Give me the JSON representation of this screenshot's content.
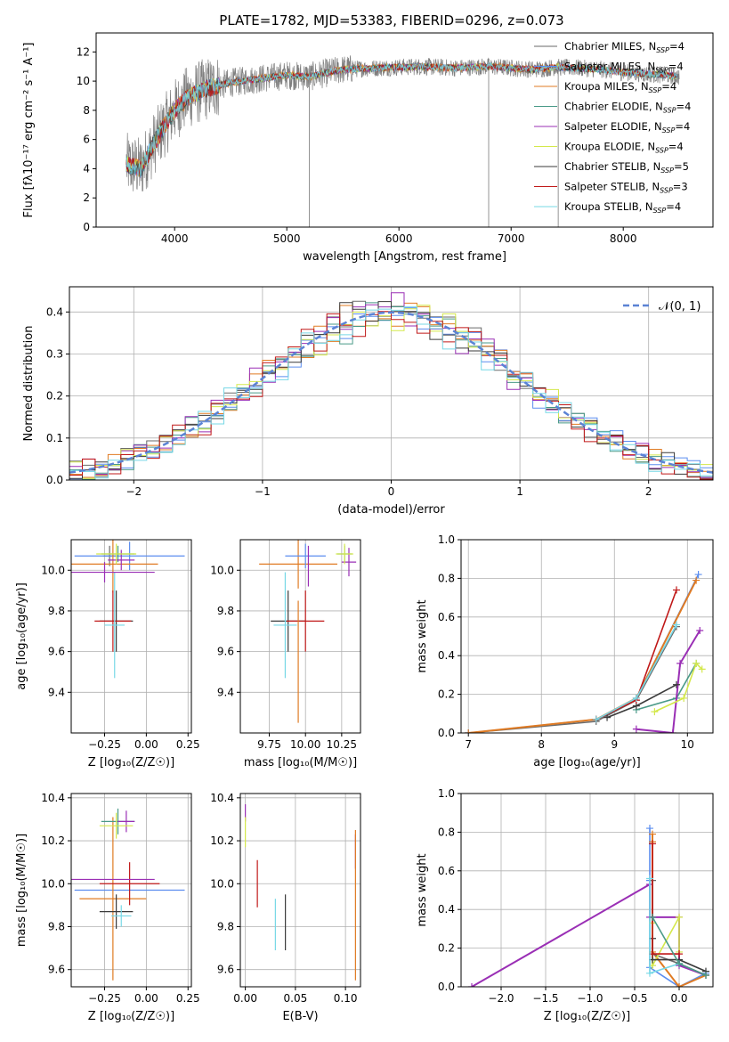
{
  "title": "PLATE=1782, MJD=53383, FIBERID=0296, z=0.073",
  "colors": {
    "Chabrier MILES": "#6a6a6a",
    "Salpeter MILES": "#5b8def",
    "Kroupa MILES": "#e07b23",
    "Chabrier ELODIE": "#4a9a88",
    "Salpeter ELODIE": "#9a2fb5",
    "Kroupa ELODIE": "#d4e84b",
    "Chabrier STELIB": "#3a3a3a",
    "Salpeter STELIB": "#c01818",
    "Kroupa STELIB": "#77d8e6"
  },
  "chart_data": [
    {
      "id": "spectrum",
      "type": "line",
      "title": "PLATE=1782, MJD=53383, FIBERID=0296, z=0.073",
      "xlabel": "wavelength [Angstrom, rest frame]",
      "ylabel": "Flux [fλ10⁻¹⁷ erg cm⁻² s⁻¹ A⁻¹]",
      "xlim": [
        3300,
        8800
      ],
      "ylim": [
        0,
        13.3
      ],
      "xticks": [
        4000,
        5000,
        6000,
        7000,
        8000
      ],
      "yticks": [
        0,
        2,
        4,
        6,
        8,
        10,
        12
      ],
      "grid": false,
      "legend_position": "right",
      "continuum": {
        "x": [
          3570,
          3700,
          3800,
          3900,
          4000,
          4100,
          4200,
          4300,
          4500,
          4800,
          5000,
          5200,
          5500,
          5800,
          6000,
          6200,
          6500,
          6800,
          7000,
          7200,
          7400,
          7600,
          7800,
          8000,
          8200,
          8400,
          8500
        ],
        "y": [
          4.3,
          4.0,
          5.5,
          6.8,
          8.0,
          8.8,
          9.2,
          9.5,
          9.9,
          10.2,
          10.4,
          10.3,
          10.8,
          10.9,
          10.95,
          11.0,
          10.9,
          11.0,
          10.9,
          10.8,
          10.95,
          10.9,
          10.8,
          10.6,
          10.5,
          10.4,
          10.3
        ]
      },
      "legend": [
        "Chabrier MILES, N_SSP=4",
        "Salpeter MILES, N_SSP=4",
        "Kroupa MILES, N_SSP=4",
        "Chabrier ELODIE, N_SSP=4",
        "Salpeter ELODIE, N_SSP=4",
        "Kroupa ELODIE, N_SSP=4",
        "Chabrier STELIB, N_SSP=5",
        "Salpeter STELIB, N_SSP=3",
        "Kroupa STELIB, N_SSP=4"
      ]
    },
    {
      "id": "residuals",
      "type": "line",
      "xlabel": "(data-model)/error",
      "ylabel": "Normed distribution",
      "xlim": [
        -2.5,
        2.5
      ],
      "ylim": [
        0,
        0.46
      ],
      "xticks": [
        -2,
        -1,
        0,
        1,
        2
      ],
      "yticks": [
        0.0,
        0.1,
        0.2,
        0.3,
        0.4
      ],
      "grid": true,
      "legend_position": "top-right",
      "gaussian_label": "𝒩(0, 1)",
      "bin_width": 0.1,
      "bin_start": -2.5
    },
    {
      "id": "age_vs_Z",
      "type": "scatter",
      "xlabel": "Z [log₁₀(Z/Z☉)]",
      "ylabel": "age  [log₁₀(age/yr)]",
      "xlim": [
        -0.45,
        0.27
      ],
      "ylim": [
        9.2,
        10.15
      ],
      "xticks": [
        -0.25,
        0.0,
        0.25
      ],
      "xticklabels": [
        "−0.25",
        "0.00",
        "0.25"
      ],
      "yticks": [
        9.4,
        9.6,
        9.8,
        10.0
      ],
      "grid": true,
      "points": [
        {
          "model": "Chabrier MILES",
          "x": -0.22,
          "xerr": 0.04,
          "y": 10.07,
          "yerr": 0.05
        },
        {
          "model": "Salpeter MILES",
          "x": -0.1,
          "xerr": 0.33,
          "y": 10.07,
          "yerr": 0.07
        },
        {
          "model": "Kroupa MILES",
          "x": -0.2,
          "xerr": 0.27,
          "y": 10.03,
          "yerr": 0.14
        },
        {
          "model": "Chabrier ELODIE",
          "x": -0.17,
          "xerr": 0.1,
          "y": 10.08,
          "yerr": 0.04
        },
        {
          "model": "Salpeter ELODIE",
          "x": -0.15,
          "xerr": 0.08,
          "y": 10.05,
          "yerr": 0.05
        },
        {
          "model": "Kroupa ELODIE",
          "x": -0.18,
          "xerr": 0.12,
          "y": 10.08,
          "yerr": 0.05
        },
        {
          "model": "Chabrier STELIB",
          "x": -0.18,
          "xerr": 0.1,
          "y": 9.75,
          "yerr": 0.15
        },
        {
          "model": "Salpeter STELIB",
          "x": -0.2,
          "xerr": 0.11,
          "y": 9.75,
          "yerr": 0.15
        },
        {
          "model": "Kroupa STELIB",
          "x": -0.19,
          "xerr": 0.06,
          "y": 9.73,
          "yerr": 0.26
        },
        {
          "model": "Salpeter ELODIE",
          "x": -0.25,
          "xerr": 0.3,
          "y": 9.99,
          "yerr": 0.05
        }
      ]
    },
    {
      "id": "age_vs_mass",
      "type": "scatter",
      "xlabel": "mass [log₁₀(M/M☉)]",
      "ylabel": "",
      "xlim": [
        9.55,
        10.38
      ],
      "ylim": [
        9.2,
        10.15
      ],
      "xticks": [
        9.75,
        10.0,
        10.25
      ],
      "xticklabels": [
        "9.75",
        "10.00",
        "10.25"
      ],
      "yticks": [
        9.4,
        9.6,
        9.8,
        10.0
      ],
      "grid": true,
      "points": [
        {
          "model": "Kroupa MILES",
          "x": 9.95,
          "xerr": 0.27,
          "y": 10.03,
          "yerr": 0.12
        },
        {
          "model": "Salpeter MILES",
          "x": 10.0,
          "xerr": 0.14,
          "y": 10.07,
          "yerr": 0.06
        },
        {
          "model": "Chabrier ELODIE",
          "x": 10.27,
          "xerr": 0.05,
          "y": 10.08,
          "yerr": 0.04
        },
        {
          "model": "Salpeter ELODIE",
          "x": 10.3,
          "xerr": 0.05,
          "y": 10.04,
          "yerr": 0.07
        },
        {
          "model": "Kroupa ELODIE",
          "x": 10.27,
          "xerr": 0.06,
          "y": 10.08,
          "yerr": 0.05
        },
        {
          "model": "Chabrier STELIB",
          "x": 9.88,
          "xerr": 0.12,
          "y": 9.75,
          "yerr": 0.15
        },
        {
          "model": "Salpeter STELIB",
          "x": 10.0,
          "xerr": 0.13,
          "y": 9.75,
          "yerr": 0.15
        },
        {
          "model": "Kroupa STELIB",
          "x": 9.86,
          "xerr": 0.08,
          "y": 9.73,
          "yerr": 0.26
        },
        {
          "model": "Kroupa MILES",
          "x": 9.95,
          "xerr": 0.0,
          "y": 9.55,
          "yerr": 0.3
        },
        {
          "model": "Salpeter ELODIE",
          "x": 10.02,
          "xerr": 0.0,
          "y": 10.02,
          "yerr": 0.1
        }
      ]
    },
    {
      "id": "mass_weight_vs_age",
      "type": "line",
      "xlabel": "age  [log₁₀(age/yr)]",
      "ylabel": "mass weight",
      "xlim": [
        6.9,
        10.35
      ],
      "ylim": [
        0,
        1.0
      ],
      "xticks": [
        7,
        8,
        9,
        10
      ],
      "yticks": [
        0.0,
        0.2,
        0.4,
        0.6,
        0.8,
        1.0
      ],
      "grid": true,
      "series": [
        {
          "model": "Chabrier MILES",
          "x": [
            7.0,
            8.75,
            9.3,
            9.85
          ],
          "y": [
            0.0,
            0.06,
            0.17,
            0.55
          ]
        },
        {
          "model": "Salpeter MILES",
          "x": [
            7.0,
            8.75,
            9.3,
            10.15
          ],
          "y": [
            0.0,
            0.07,
            0.18,
            0.82
          ]
        },
        {
          "model": "Kroupa MILES",
          "x": [
            7.0,
            8.75,
            9.3,
            10.12
          ],
          "y": [
            0.0,
            0.07,
            0.18,
            0.79
          ]
        },
        {
          "model": "Chabrier ELODIE",
          "x": [
            9.3,
            9.85,
            10.12
          ],
          "y": [
            0.12,
            0.18,
            0.36
          ]
        },
        {
          "model": "Salpeter ELODIE",
          "x": [
            9.3,
            9.8,
            9.9,
            10.17
          ],
          "y": [
            0.02,
            0.0,
            0.36,
            0.53
          ]
        },
        {
          "model": "Kroupa ELODIE",
          "x": [
            9.55,
            9.95,
            10.12,
            10.2
          ],
          "y": [
            0.11,
            0.18,
            0.36,
            0.33
          ]
        },
        {
          "model": "Chabrier STELIB",
          "x": [
            8.9,
            9.3,
            9.85
          ],
          "y": [
            0.08,
            0.14,
            0.25
          ]
        },
        {
          "model": "Salpeter STELIB",
          "x": [
            8.75,
            9.3,
            9.85
          ],
          "y": [
            0.07,
            0.17,
            0.74
          ]
        },
        {
          "model": "Kroupa STELIB",
          "x": [
            8.75,
            9.3,
            9.85
          ],
          "y": [
            0.07,
            0.18,
            0.56
          ]
        }
      ]
    },
    {
      "id": "mass_vs_Z",
      "type": "scatter",
      "xlabel": "Z [log₁₀(Z/Z☉)]",
      "ylabel": "mass [log₁₀(M/M☉)]",
      "xlim": [
        -0.45,
        0.27
      ],
      "ylim": [
        9.52,
        10.42
      ],
      "xticks": [
        -0.25,
        0.0,
        0.25
      ],
      "xticklabels": [
        "−0.25",
        "0.00",
        "0.25"
      ],
      "yticks": [
        9.6,
        9.8,
        10.0,
        10.2,
        10.4
      ],
      "grid": true,
      "points": [
        {
          "model": "Salpeter MILES",
          "x": -0.1,
          "xerr": 0.33,
          "y": 9.97,
          "yerr": 0.0
        },
        {
          "model": "Kroupa MILES",
          "x": -0.2,
          "xerr": 0.2,
          "y": 9.93,
          "yerr": 0.38
        },
        {
          "model": "Salpeter STELIB",
          "x": -0.1,
          "xerr": 0.18,
          "y": 10.0,
          "yerr": 0.1
        },
        {
          "model": "Salpeter ELODIE",
          "x": -0.25,
          "xerr": 0.3,
          "y": 10.02,
          "yerr": 0.0
        },
        {
          "model": "Chabrier STELIB",
          "x": -0.18,
          "xerr": 0.1,
          "y": 9.87,
          "yerr": 0.08
        },
        {
          "model": "Kroupa STELIB",
          "x": -0.15,
          "xerr": 0.06,
          "y": 9.85,
          "yerr": 0.05
        },
        {
          "model": "Chabrier ELODIE",
          "x": -0.17,
          "xerr": 0.1,
          "y": 10.29,
          "yerr": 0.06
        },
        {
          "model": "Salpeter ELODIE",
          "x": -0.12,
          "xerr": 0.05,
          "y": 10.29,
          "yerr": 0.05
        },
        {
          "model": "Kroupa ELODIE",
          "x": -0.18,
          "xerr": 0.1,
          "y": 10.27,
          "yerr": 0.06
        }
      ]
    },
    {
      "id": "mass_vs_EBV",
      "type": "scatter",
      "xlabel": "E(B-V)",
      "ylabel": "",
      "xlim": [
        -0.005,
        0.115
      ],
      "ylim": [
        9.52,
        10.42
      ],
      "xticks": [
        0.0,
        0.05,
        0.1
      ],
      "xticklabels": [
        "0.00",
        "0.05",
        "0.10"
      ],
      "yticks": [
        9.6,
        9.8,
        10.0,
        10.2,
        10.4
      ],
      "grid": true,
      "points": [
        {
          "model": "Salpeter ELODIE",
          "x": 0.0,
          "y": 10.33,
          "yerr": 0.04
        },
        {
          "model": "Kroupa ELODIE",
          "x": 0.0,
          "y": 10.24,
          "yerr": 0.07
        },
        {
          "model": "Salpeter STELIB",
          "x": 0.012,
          "y": 10.0,
          "yerr": 0.11
        },
        {
          "model": "Kroupa STELIB",
          "x": 0.03,
          "y": 9.81,
          "yerr": 0.12
        },
        {
          "model": "Chabrier STELIB",
          "x": 0.04,
          "y": 9.82,
          "yerr": 0.13
        },
        {
          "model": "Salpeter ELODIE",
          "x": 0.11,
          "y": 10.15,
          "yerr": 0.08
        },
        {
          "model": "Kroupa MILES",
          "x": 0.11,
          "y": 9.9,
          "yerr": 0.35
        }
      ]
    },
    {
      "id": "mass_weight_vs_Z",
      "type": "line",
      "xlabel": "Z [log₁₀(Z/Z☉)]",
      "ylabel": "mass weight",
      "xlim": [
        -2.45,
        0.38
      ],
      "ylim": [
        0,
        1.0
      ],
      "xticks": [
        -2.0,
        -1.5,
        -1.0,
        -0.5,
        0.0
      ],
      "xticklabels": [
        "−2.0",
        "−1.5",
        "−1.0",
        "−0.5",
        "0.0"
      ],
      "yticks": [
        0.0,
        0.2,
        0.4,
        0.6,
        0.8,
        1.0
      ],
      "grid": true,
      "series": [
        {
          "model": "Salpeter ELODIE",
          "x": [
            -2.33,
            -0.33,
            -0.33,
            0.0,
            0.0,
            0.3
          ],
          "y": [
            0.0,
            0.53,
            0.36,
            0.36,
            0.11,
            0.06
          ]
        },
        {
          "model": "Salpeter MILES",
          "x": [
            -0.33,
            -0.33,
            -0.33,
            0.0,
            0.3
          ],
          "y": [
            0.82,
            0.55,
            0.1,
            0.0,
            0.07
          ]
        },
        {
          "model": "Kroupa MILES",
          "x": [
            -0.3,
            -0.3,
            -0.3,
            0.0,
            0.3
          ],
          "y": [
            0.79,
            0.75,
            0.18,
            0.0,
            0.06
          ]
        },
        {
          "model": "Chabrier MILES",
          "x": [
            -0.3,
            -0.3,
            0.0,
            0.3
          ],
          "y": [
            0.55,
            0.17,
            0.12,
            0.06
          ]
        },
        {
          "model": "Kroupa ELODIE",
          "x": [
            -0.3,
            -0.3,
            0.0,
            0.0
          ],
          "y": [
            0.33,
            0.11,
            0.36,
            0.18
          ]
        },
        {
          "model": "Chabrier STELIB",
          "x": [
            -0.3,
            -0.3,
            0.0,
            0.3
          ],
          "y": [
            0.25,
            0.14,
            0.14,
            0.08
          ]
        },
        {
          "model": "Salpeter STELIB",
          "x": [
            -0.3,
            -0.3,
            0.0
          ],
          "y": [
            0.74,
            0.17,
            0.17
          ]
        },
        {
          "model": "Kroupa STELIB",
          "x": [
            -0.33,
            -0.33,
            0.0
          ],
          "y": [
            0.56,
            0.07,
            0.12
          ]
        },
        {
          "model": "Chabrier ELODIE",
          "x": [
            -0.3,
            0.0,
            0.3
          ],
          "y": [
            0.36,
            0.12,
            0.06
          ]
        }
      ]
    }
  ]
}
